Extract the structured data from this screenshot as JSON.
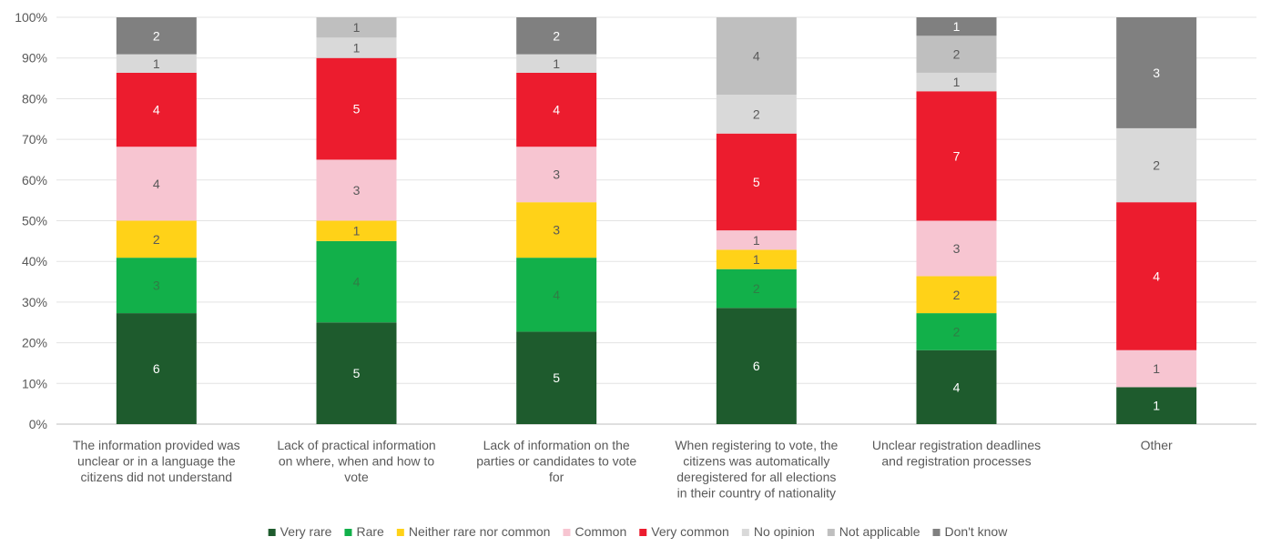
{
  "chart_data": {
    "type": "bar",
    "stacked": true,
    "normalized_percent": true,
    "ylim": [
      0,
      100
    ],
    "yticks": [
      "0%",
      "10%",
      "20%",
      "30%",
      "40%",
      "50%",
      "60%",
      "70%",
      "80%",
      "90%",
      "100%"
    ],
    "grid": true,
    "legend_position": "bottom",
    "categories": [
      [
        "The information provided was",
        "unclear or in a language the",
        "citizens did not understand"
      ],
      [
        "Lack of practical information",
        "on where, when and how to",
        "vote"
      ],
      [
        "Lack of information on the",
        "parties or candidates to vote",
        "for"
      ],
      [
        "When registering to vote, the",
        "citizens was automatically",
        "deregistered for all elections",
        "in their country of nationality"
      ],
      [
        "Unclear registration deadlines",
        "and registration processes"
      ],
      [
        "Other"
      ]
    ],
    "series": [
      {
        "name": "Very rare",
        "color": "#1e5b2d",
        "label_color": "#ffffff",
        "values": [
          6,
          5,
          5,
          6,
          4,
          1
        ]
      },
      {
        "name": "Rare",
        "color": "#12b04a",
        "label_color": "#2f7d45",
        "values": [
          3,
          4,
          4,
          2,
          2,
          0
        ]
      },
      {
        "name": "Neither rare nor common",
        "color": "#ffd218",
        "label_color": "#595959",
        "values": [
          2,
          1,
          3,
          1,
          2,
          0
        ]
      },
      {
        "name": "Common",
        "color": "#f7c5d1",
        "label_color": "#595959",
        "values": [
          4,
          3,
          3,
          1,
          3,
          1
        ]
      },
      {
        "name": "Very common",
        "color": "#ec1c2e",
        "label_color": "#ffffff",
        "values": [
          4,
          5,
          4,
          5,
          7,
          4
        ]
      },
      {
        "name": "No opinion",
        "color": "#d9d9d9",
        "label_color": "#595959",
        "values": [
          1,
          1,
          1,
          2,
          1,
          2
        ]
      },
      {
        "name": "Not applicable",
        "color": "#bfbfbf",
        "label_color": "#595959",
        "values": [
          0,
          1,
          0,
          4,
          2,
          0
        ]
      },
      {
        "name": "Don't know",
        "color": "#808080",
        "label_color": "#ffffff",
        "values": [
          2,
          0,
          2,
          0,
          1,
          3
        ]
      }
    ]
  }
}
